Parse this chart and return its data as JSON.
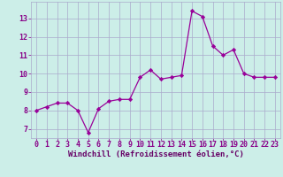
{
  "x": [
    0,
    1,
    2,
    3,
    4,
    5,
    6,
    7,
    8,
    9,
    10,
    11,
    12,
    13,
    14,
    15,
    16,
    17,
    18,
    19,
    20,
    21,
    22,
    23
  ],
  "y": [
    8.0,
    8.2,
    8.4,
    8.4,
    8.0,
    6.8,
    8.1,
    8.5,
    8.6,
    8.6,
    9.8,
    10.2,
    9.7,
    9.8,
    9.9,
    13.4,
    13.1,
    11.5,
    11.0,
    11.3,
    10.0,
    9.8,
    9.8,
    9.8
  ],
  "line_color": "#990099",
  "marker": "D",
  "markersize": 2.2,
  "linewidth": 0.9,
  "bg_color": "#cceee8",
  "grid_color": "#aaaacc",
  "xlabel": "Windchill (Refroidissement éolien,°C)",
  "xlabel_color": "#660066",
  "xlabel_fontsize": 6.5,
  "tick_color": "#880088",
  "tick_fontsize": 6.0,
  "yticks": [
    7,
    8,
    9,
    10,
    11,
    12,
    13
  ],
  "xticks": [
    0,
    1,
    2,
    3,
    4,
    5,
    6,
    7,
    8,
    9,
    10,
    11,
    12,
    13,
    14,
    15,
    16,
    17,
    18,
    19,
    20,
    21,
    22,
    23
  ],
  "ylim": [
    6.5,
    13.9
  ],
  "xlim": [
    -0.5,
    23.5
  ]
}
